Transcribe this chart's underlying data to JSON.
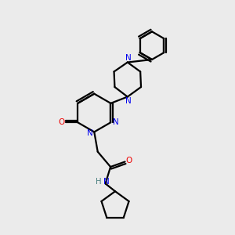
{
  "bg_color": "#ebebeb",
  "atom_colors": {
    "N": "#0000ee",
    "O": "#ee0000",
    "H": "#4a8080",
    "C": "#000000"
  },
  "line_color": "#000000",
  "line_width": 1.6,
  "figsize": [
    3.0,
    3.0
  ],
  "dpi": 100
}
